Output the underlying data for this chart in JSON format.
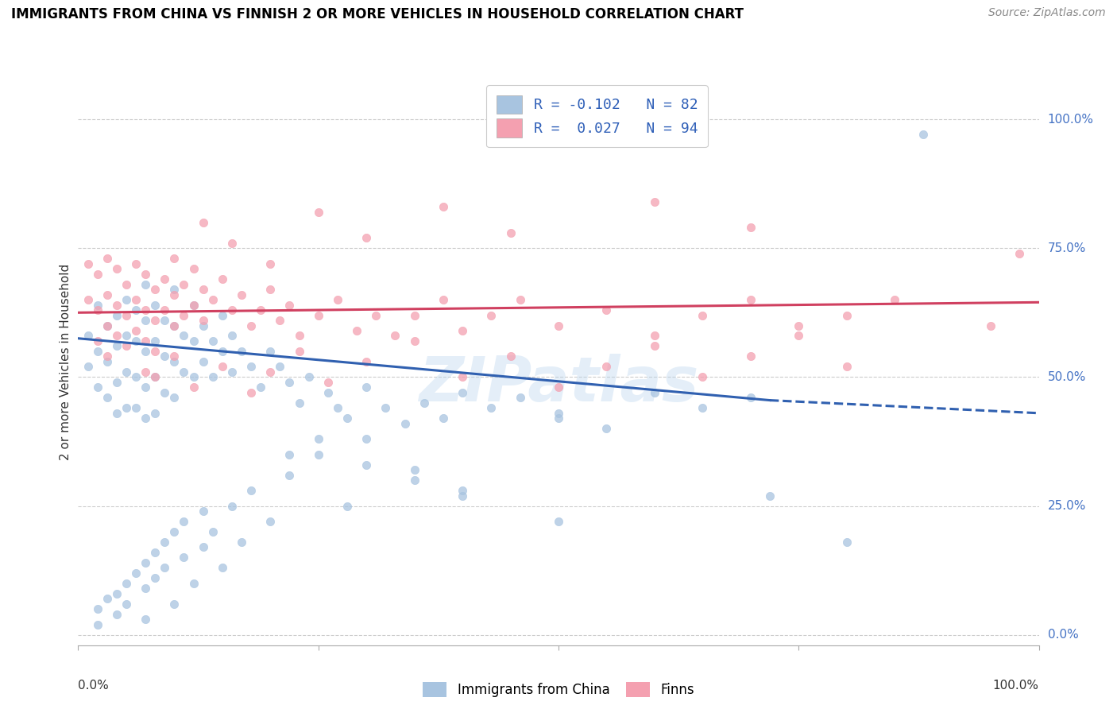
{
  "title": "IMMIGRANTS FROM CHINA VS FINNISH 2 OR MORE VEHICLES IN HOUSEHOLD CORRELATION CHART",
  "source": "Source: ZipAtlas.com",
  "ylabel": "2 or more Vehicles in Household",
  "ytick_labels": [
    "0.0%",
    "25.0%",
    "50.0%",
    "75.0%",
    "100.0%"
  ],
  "ytick_values": [
    0.0,
    0.25,
    0.5,
    0.75,
    1.0
  ],
  "xlim": [
    0.0,
    1.0
  ],
  "ylim": [
    -0.02,
    1.08
  ],
  "legend_label_blue": "R = -0.102   N = 82",
  "legend_label_pink": "R =  0.027   N = 94",
  "legend_label_china": "Immigrants from China",
  "legend_label_finns": "Finns",
  "blue_color": "#a8c4e0",
  "pink_color": "#f4a0b0",
  "line_blue": "#3060b0",
  "line_pink": "#d04060",
  "watermark": "ZIPatlas",
  "blue_line_x0": 0.0,
  "blue_line_y0": 0.575,
  "blue_line_x1": 0.72,
  "blue_line_y1": 0.455,
  "blue_line_xdash0": 0.72,
  "blue_line_ydash0": 0.455,
  "blue_line_xdash1": 1.0,
  "blue_line_ydash1": 0.43,
  "pink_line_x0": 0.0,
  "pink_line_y0": 0.625,
  "pink_line_x1": 1.0,
  "pink_line_y1": 0.645,
  "blue_x": [
    0.01,
    0.01,
    0.02,
    0.02,
    0.02,
    0.03,
    0.03,
    0.03,
    0.04,
    0.04,
    0.04,
    0.04,
    0.05,
    0.05,
    0.05,
    0.05,
    0.06,
    0.06,
    0.06,
    0.06,
    0.07,
    0.07,
    0.07,
    0.07,
    0.07,
    0.08,
    0.08,
    0.08,
    0.08,
    0.09,
    0.09,
    0.09,
    0.1,
    0.1,
    0.1,
    0.1,
    0.11,
    0.11,
    0.12,
    0.12,
    0.12,
    0.13,
    0.13,
    0.14,
    0.14,
    0.15,
    0.15,
    0.16,
    0.16,
    0.17,
    0.18,
    0.19,
    0.2,
    0.21,
    0.22,
    0.23,
    0.24,
    0.26,
    0.27,
    0.28,
    0.3,
    0.32,
    0.34,
    0.36,
    0.38,
    0.4,
    0.43,
    0.46,
    0.5,
    0.55,
    0.6,
    0.65,
    0.7,
    0.22,
    0.25,
    0.3,
    0.35,
    0.4,
    0.5,
    0.72,
    0.8,
    0.88
  ],
  "blue_y": [
    0.58,
    0.52,
    0.64,
    0.55,
    0.48,
    0.6,
    0.53,
    0.46,
    0.62,
    0.56,
    0.49,
    0.43,
    0.65,
    0.58,
    0.51,
    0.44,
    0.63,
    0.57,
    0.5,
    0.44,
    0.68,
    0.61,
    0.55,
    0.48,
    0.42,
    0.64,
    0.57,
    0.5,
    0.43,
    0.61,
    0.54,
    0.47,
    0.67,
    0.6,
    0.53,
    0.46,
    0.58,
    0.51,
    0.64,
    0.57,
    0.5,
    0.6,
    0.53,
    0.57,
    0.5,
    0.62,
    0.55,
    0.58,
    0.51,
    0.55,
    0.52,
    0.48,
    0.55,
    0.52,
    0.49,
    0.45,
    0.5,
    0.47,
    0.44,
    0.42,
    0.48,
    0.44,
    0.41,
    0.45,
    0.42,
    0.47,
    0.44,
    0.46,
    0.43,
    0.4,
    0.47,
    0.44,
    0.46,
    0.35,
    0.38,
    0.33,
    0.3,
    0.27,
    0.22,
    0.27,
    0.18,
    0.97
  ],
  "blue_low_y": [
    0.02,
    0.05,
    0.07,
    0.04,
    0.08,
    0.06,
    0.1,
    0.12,
    0.03,
    0.09,
    0.14,
    0.11,
    0.16,
    0.13,
    0.18,
    0.06,
    0.2,
    0.15,
    0.22,
    0.1,
    0.17,
    0.24,
    0.2,
    0.13,
    0.25,
    0.18,
    0.28,
    0.22,
    0.31,
    0.35,
    0.25,
    0.38,
    0.32,
    0.28,
    0.42
  ],
  "blue_low_x": [
    0.02,
    0.02,
    0.03,
    0.04,
    0.04,
    0.05,
    0.05,
    0.06,
    0.07,
    0.07,
    0.07,
    0.08,
    0.08,
    0.09,
    0.09,
    0.1,
    0.1,
    0.11,
    0.11,
    0.12,
    0.13,
    0.13,
    0.14,
    0.15,
    0.16,
    0.17,
    0.18,
    0.2,
    0.22,
    0.25,
    0.28,
    0.3,
    0.35,
    0.4,
    0.5
  ],
  "pink_x": [
    0.01,
    0.01,
    0.02,
    0.02,
    0.02,
    0.03,
    0.03,
    0.03,
    0.03,
    0.04,
    0.04,
    0.04,
    0.05,
    0.05,
    0.05,
    0.06,
    0.06,
    0.06,
    0.07,
    0.07,
    0.07,
    0.07,
    0.08,
    0.08,
    0.08,
    0.09,
    0.09,
    0.1,
    0.1,
    0.1,
    0.11,
    0.11,
    0.12,
    0.12,
    0.13,
    0.13,
    0.14,
    0.15,
    0.16,
    0.17,
    0.18,
    0.19,
    0.2,
    0.21,
    0.22,
    0.23,
    0.25,
    0.27,
    0.29,
    0.31,
    0.33,
    0.35,
    0.38,
    0.4,
    0.43,
    0.46,
    0.5,
    0.55,
    0.6,
    0.65,
    0.7,
    0.75,
    0.8,
    0.85,
    0.95,
    0.08,
    0.1,
    0.12,
    0.15,
    0.18,
    0.2,
    0.23,
    0.26,
    0.3,
    0.35,
    0.4,
    0.45,
    0.5,
    0.55,
    0.6,
    0.65,
    0.7,
    0.75,
    0.8,
    0.13,
    0.16,
    0.2,
    0.25,
    0.3,
    0.38,
    0.45,
    0.6,
    0.7,
    0.98
  ],
  "pink_y": [
    0.72,
    0.65,
    0.7,
    0.63,
    0.57,
    0.73,
    0.66,
    0.6,
    0.54,
    0.71,
    0.64,
    0.58,
    0.68,
    0.62,
    0.56,
    0.72,
    0.65,
    0.59,
    0.7,
    0.63,
    0.57,
    0.51,
    0.67,
    0.61,
    0.55,
    0.69,
    0.63,
    0.73,
    0.66,
    0.6,
    0.68,
    0.62,
    0.71,
    0.64,
    0.67,
    0.61,
    0.65,
    0.69,
    0.63,
    0.66,
    0.6,
    0.63,
    0.67,
    0.61,
    0.64,
    0.58,
    0.62,
    0.65,
    0.59,
    0.62,
    0.58,
    0.62,
    0.65,
    0.59,
    0.62,
    0.65,
    0.6,
    0.63,
    0.58,
    0.62,
    0.65,
    0.6,
    0.62,
    0.65,
    0.6,
    0.5,
    0.54,
    0.48,
    0.52,
    0.47,
    0.51,
    0.55,
    0.49,
    0.53,
    0.57,
    0.5,
    0.54,
    0.48,
    0.52,
    0.56,
    0.5,
    0.54,
    0.58,
    0.52,
    0.8,
    0.76,
    0.72,
    0.82,
    0.77,
    0.83,
    0.78,
    0.84,
    0.79,
    0.74
  ]
}
